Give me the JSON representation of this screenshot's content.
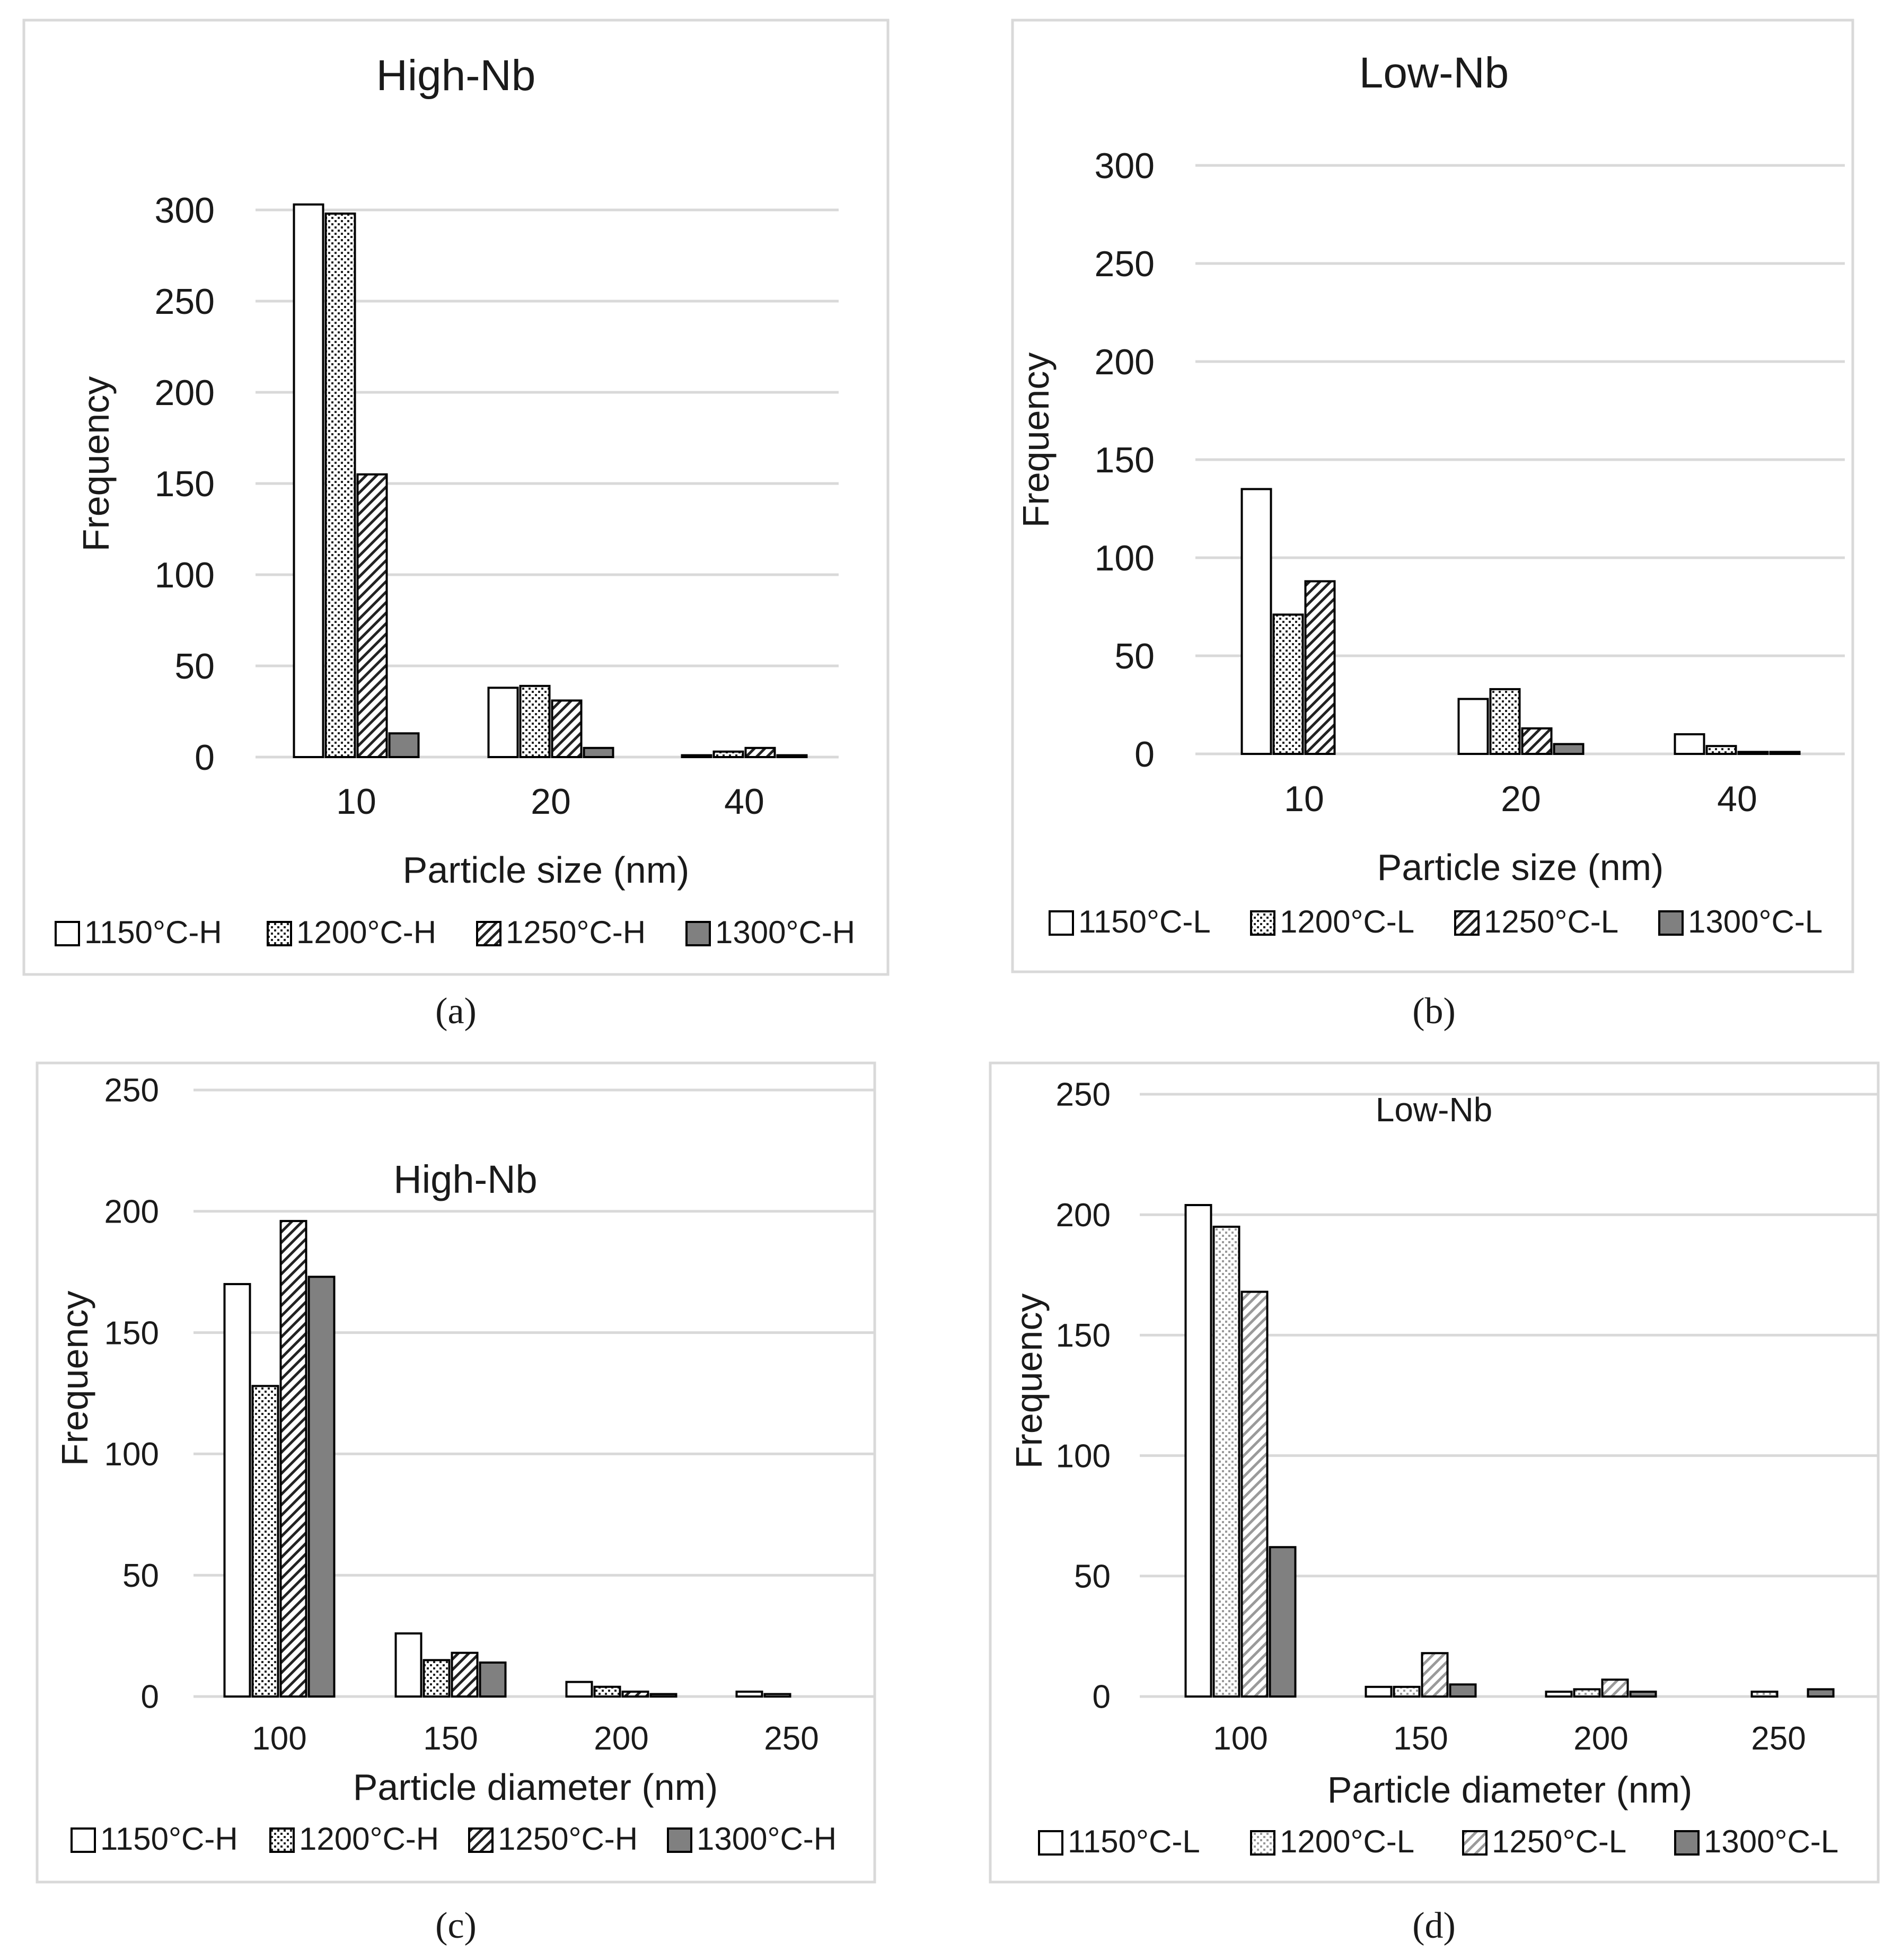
{
  "colors": {
    "frame": "#d9d9d9",
    "grid": "#d9d9d9",
    "axis": "#d9d9d9",
    "text": "#1a1a1a",
    "bar_outline": "#000000",
    "solid_fill": "#808080"
  },
  "chart_data": [
    {
      "panel": "a",
      "caption": "(a)",
      "type": "bar",
      "title": "High-Nb",
      "xlabel": "Particle size (nm)",
      "ylabel": "Frequency",
      "ylim": [
        0,
        300
      ],
      "yticks": [
        "0",
        "50",
        "100",
        "150",
        "200",
        "250",
        "300"
      ],
      "ytick_values": [
        0,
        50,
        100,
        150,
        200,
        250,
        300
      ],
      "grid": true,
      "legend_position": "bottom",
      "categories": [
        "10",
        "20",
        "40"
      ],
      "series": [
        {
          "name": "1150°C-H",
          "pattern": "none",
          "values": [
            303,
            38,
            1
          ]
        },
        {
          "name": "1200°C-H",
          "pattern": "dots",
          "values": [
            298,
            39,
            3
          ]
        },
        {
          "name": "1250°C-H",
          "pattern": "diagonal",
          "values": [
            155,
            31,
            5
          ]
        },
        {
          "name": "1300°C-H",
          "pattern": "solid",
          "values": [
            13,
            5,
            1
          ]
        }
      ]
    },
    {
      "panel": "b",
      "caption": "(b)",
      "type": "bar",
      "title": "Low-Nb",
      "xlabel": "Particle size (nm)",
      "ylabel": "Frequency",
      "ylim": [
        0,
        300
      ],
      "yticks": [
        "0",
        "50",
        "100",
        "150",
        "200",
        "250",
        "300"
      ],
      "ytick_values": [
        0,
        50,
        100,
        150,
        200,
        250,
        300
      ],
      "grid": true,
      "legend_position": "bottom",
      "categories": [
        "10",
        "20",
        "40"
      ],
      "series": [
        {
          "name": "1150°C-L",
          "pattern": "none",
          "values": [
            135,
            28,
            10
          ]
        },
        {
          "name": "1200°C-L",
          "pattern": "dots",
          "values": [
            71,
            33,
            4
          ]
        },
        {
          "name": "1250°C-L",
          "pattern": "diagonal",
          "values": [
            88,
            13,
            1
          ]
        },
        {
          "name": "1300°C-L",
          "pattern": "solid",
          "values": [
            0,
            5,
            1
          ]
        }
      ]
    },
    {
      "panel": "c",
      "caption": "(c)",
      "type": "bar",
      "title": "High-Nb",
      "xlabel": "Particle diameter (nm)",
      "ylabel": "Frequency",
      "ylim": [
        0,
        250
      ],
      "yticks": [
        "0",
        "50",
        "100",
        "150",
        "200",
        "250"
      ],
      "ytick_values": [
        0,
        50,
        100,
        150,
        200,
        250
      ],
      "grid": true,
      "legend_position": "bottom",
      "categories": [
        "100",
        "150",
        "200",
        "250"
      ],
      "series": [
        {
          "name": "1150°C-H",
          "pattern": "none",
          "values": [
            170,
            26,
            6,
            2
          ]
        },
        {
          "name": "1200°C-H",
          "pattern": "dots",
          "values": [
            128,
            15,
            4,
            1
          ]
        },
        {
          "name": "1250°C-H",
          "pattern": "diagonal",
          "values": [
            196,
            18,
            2,
            0
          ]
        },
        {
          "name": "1300°C-H",
          "pattern": "solid",
          "values": [
            173,
            14,
            1,
            0
          ]
        }
      ]
    },
    {
      "panel": "d",
      "caption": "(d)",
      "type": "bar",
      "title": "Low-Nb",
      "xlabel": "Particle diameter (nm)",
      "ylabel": "Frequency",
      "ylim": [
        0,
        250
      ],
      "yticks": [
        "0",
        "50",
        "100",
        "150",
        "200",
        "250"
      ],
      "ytick_values": [
        0,
        50,
        100,
        150,
        200,
        250
      ],
      "grid": true,
      "legend_position": "bottom",
      "categories": [
        "100",
        "150",
        "200",
        "250"
      ],
      "series": [
        {
          "name": "1150°C-L",
          "pattern": "none",
          "values": [
            204,
            4,
            2,
            0
          ]
        },
        {
          "name": "1200°C-L",
          "pattern": "light-dots",
          "values": [
            195,
            4,
            3,
            2
          ]
        },
        {
          "name": "1250°C-L",
          "pattern": "light-diagonal",
          "values": [
            168,
            18,
            7,
            0
          ]
        },
        {
          "name": "1300°C-L",
          "pattern": "solid",
          "values": [
            62,
            5,
            2,
            3
          ]
        }
      ]
    }
  ]
}
